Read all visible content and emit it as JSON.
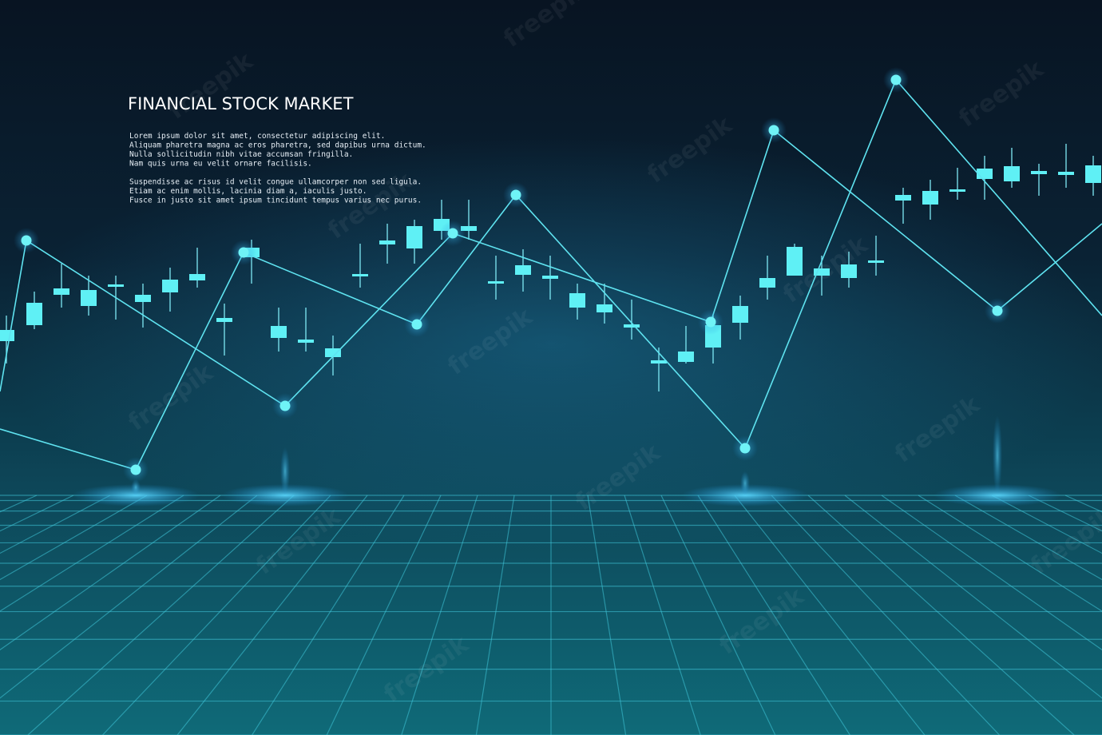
{
  "header": {
    "title": "FINANCIAL  STOCK  MARKET"
  },
  "body": {
    "paragraphs": [
      [
        "Lorem ipsum dolor sit amet, consectetur adipiscing elit.",
        "Aliquam pharetra magna ac eros pharetra, sed dapibus urna dictum.",
        "Nulla sollicitudin nibh vitae accumsan fringilla.",
        "Nam quis urna eu velit ornare facilisis."
      ],
      [
        "Suspendisse ac risus id velit congue ullamcorper non sed ligula.",
        "Etiam ac enim mollis, lacinia diam a, iaculis justo.",
        "Fusce in justo sit amet ipsum tincidunt tempus varius nec purus."
      ]
    ]
  },
  "watermark": "freepik"
}
